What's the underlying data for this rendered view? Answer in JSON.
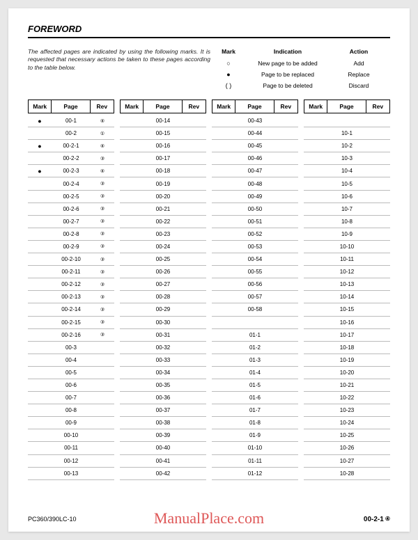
{
  "header": {
    "title": "FOREWORD"
  },
  "intro": "The affected pages are indicated by using the following marks. It is requested that necessary actions be taken to these pages according to the table below.",
  "legend": {
    "head": {
      "mark": "Mark",
      "indication": "Indication",
      "action": "Action"
    },
    "rows": [
      {
        "mark": "○",
        "indication": "New page to be added",
        "action": "Add"
      },
      {
        "mark": "●",
        "indication": "Page to be replaced",
        "action": "Replace"
      },
      {
        "mark": "(  )",
        "indication": "Page to be deleted",
        "action": "Discard"
      }
    ]
  },
  "tableHead": {
    "mark": "Mark",
    "page": "Page",
    "rev": "Rev"
  },
  "columns": [
    [
      {
        "mark": "●",
        "page": "00-1",
        "rev": "④"
      },
      {
        "mark": "",
        "page": "00-2",
        "rev": "①"
      },
      {
        "mark": "●",
        "page": "00-2-1",
        "rev": "④"
      },
      {
        "mark": "",
        "page": "00-2-2",
        "rev": "③"
      },
      {
        "mark": "●",
        "page": "00-2-3",
        "rev": "④"
      },
      {
        "mark": "",
        "page": "00-2-4",
        "rev": "③"
      },
      {
        "mark": "",
        "page": "00-2-5",
        "rev": "③"
      },
      {
        "mark": "",
        "page": "00-2-6",
        "rev": "③"
      },
      {
        "mark": "",
        "page": "00-2-7",
        "rev": "③"
      },
      {
        "mark": "",
        "page": "00-2-8",
        "rev": "③"
      },
      {
        "mark": "",
        "page": "00-2-9",
        "rev": "③"
      },
      {
        "mark": "",
        "page": "00-2-10",
        "rev": "③"
      },
      {
        "mark": "",
        "page": "00-2-11",
        "rev": "③"
      },
      {
        "mark": "",
        "page": "00-2-12",
        "rev": "③"
      },
      {
        "mark": "",
        "page": "00-2-13",
        "rev": "③"
      },
      {
        "mark": "",
        "page": "00-2-14",
        "rev": "③"
      },
      {
        "mark": "",
        "page": "00-2-15",
        "rev": "③"
      },
      {
        "mark": "",
        "page": "00-2-16",
        "rev": "③"
      },
      {
        "mark": "",
        "page": "00-3",
        "rev": ""
      },
      {
        "mark": "",
        "page": "00-4",
        "rev": ""
      },
      {
        "mark": "",
        "page": "00-5",
        "rev": ""
      },
      {
        "mark": "",
        "page": "00-6",
        "rev": ""
      },
      {
        "mark": "",
        "page": "00-7",
        "rev": ""
      },
      {
        "mark": "",
        "page": "00-8",
        "rev": ""
      },
      {
        "mark": "",
        "page": "00-9",
        "rev": ""
      },
      {
        "mark": "",
        "page": "00-10",
        "rev": ""
      },
      {
        "mark": "",
        "page": "00-11",
        "rev": ""
      },
      {
        "mark": "",
        "page": "00-12",
        "rev": ""
      },
      {
        "mark": "",
        "page": "00-13",
        "rev": ""
      }
    ],
    [
      {
        "mark": "",
        "page": "00-14",
        "rev": ""
      },
      {
        "mark": "",
        "page": "00-15",
        "rev": ""
      },
      {
        "mark": "",
        "page": "00-16",
        "rev": ""
      },
      {
        "mark": "",
        "page": "00-17",
        "rev": ""
      },
      {
        "mark": "",
        "page": "00-18",
        "rev": ""
      },
      {
        "mark": "",
        "page": "00-19",
        "rev": ""
      },
      {
        "mark": "",
        "page": "00-20",
        "rev": ""
      },
      {
        "mark": "",
        "page": "00-21",
        "rev": ""
      },
      {
        "mark": "",
        "page": "00-22",
        "rev": ""
      },
      {
        "mark": "",
        "page": "00-23",
        "rev": ""
      },
      {
        "mark": "",
        "page": "00-24",
        "rev": ""
      },
      {
        "mark": "",
        "page": "00-25",
        "rev": ""
      },
      {
        "mark": "",
        "page": "00-26",
        "rev": ""
      },
      {
        "mark": "",
        "page": "00-27",
        "rev": ""
      },
      {
        "mark": "",
        "page": "00-28",
        "rev": ""
      },
      {
        "mark": "",
        "page": "00-29",
        "rev": ""
      },
      {
        "mark": "",
        "page": "00-30",
        "rev": ""
      },
      {
        "mark": "",
        "page": "00-31",
        "rev": ""
      },
      {
        "mark": "",
        "page": "00-32",
        "rev": ""
      },
      {
        "mark": "",
        "page": "00-33",
        "rev": ""
      },
      {
        "mark": "",
        "page": "00-34",
        "rev": ""
      },
      {
        "mark": "",
        "page": "00-35",
        "rev": ""
      },
      {
        "mark": "",
        "page": "00-36",
        "rev": ""
      },
      {
        "mark": "",
        "page": "00-37",
        "rev": ""
      },
      {
        "mark": "",
        "page": "00-38",
        "rev": ""
      },
      {
        "mark": "",
        "page": "00-39",
        "rev": ""
      },
      {
        "mark": "",
        "page": "00-40",
        "rev": ""
      },
      {
        "mark": "",
        "page": "00-41",
        "rev": ""
      },
      {
        "mark": "",
        "page": "00-42",
        "rev": ""
      }
    ],
    [
      {
        "mark": "",
        "page": "00-43",
        "rev": ""
      },
      {
        "mark": "",
        "page": "00-44",
        "rev": ""
      },
      {
        "mark": "",
        "page": "00-45",
        "rev": ""
      },
      {
        "mark": "",
        "page": "00-46",
        "rev": ""
      },
      {
        "mark": "",
        "page": "00-47",
        "rev": ""
      },
      {
        "mark": "",
        "page": "00-48",
        "rev": ""
      },
      {
        "mark": "",
        "page": "00-49",
        "rev": ""
      },
      {
        "mark": "",
        "page": "00-50",
        "rev": ""
      },
      {
        "mark": "",
        "page": "00-51",
        "rev": ""
      },
      {
        "mark": "",
        "page": "00-52",
        "rev": ""
      },
      {
        "mark": "",
        "page": "00-53",
        "rev": ""
      },
      {
        "mark": "",
        "page": "00-54",
        "rev": ""
      },
      {
        "mark": "",
        "page": "00-55",
        "rev": ""
      },
      {
        "mark": "",
        "page": "00-56",
        "rev": ""
      },
      {
        "mark": "",
        "page": "00-57",
        "rev": ""
      },
      {
        "mark": "",
        "page": "00-58",
        "rev": ""
      },
      {
        "mark": "",
        "page": "",
        "rev": ""
      },
      {
        "mark": "",
        "page": "01-1",
        "rev": ""
      },
      {
        "mark": "",
        "page": "01-2",
        "rev": ""
      },
      {
        "mark": "",
        "page": "01-3",
        "rev": ""
      },
      {
        "mark": "",
        "page": "01-4",
        "rev": ""
      },
      {
        "mark": "",
        "page": "01-5",
        "rev": ""
      },
      {
        "mark": "",
        "page": "01-6",
        "rev": ""
      },
      {
        "mark": "",
        "page": "01-7",
        "rev": ""
      },
      {
        "mark": "",
        "page": "01-8",
        "rev": ""
      },
      {
        "mark": "",
        "page": "01-9",
        "rev": ""
      },
      {
        "mark": "",
        "page": "01-10",
        "rev": ""
      },
      {
        "mark": "",
        "page": "01-11",
        "rev": ""
      },
      {
        "mark": "",
        "page": "01-12",
        "rev": ""
      }
    ],
    [
      {
        "mark": "",
        "page": "",
        "rev": ""
      },
      {
        "mark": "",
        "page": "10-1",
        "rev": ""
      },
      {
        "mark": "",
        "page": "10-2",
        "rev": ""
      },
      {
        "mark": "",
        "page": "10-3",
        "rev": ""
      },
      {
        "mark": "",
        "page": "10-4",
        "rev": ""
      },
      {
        "mark": "",
        "page": "10-5",
        "rev": ""
      },
      {
        "mark": "",
        "page": "10-6",
        "rev": ""
      },
      {
        "mark": "",
        "page": "10-7",
        "rev": ""
      },
      {
        "mark": "",
        "page": "10-8",
        "rev": ""
      },
      {
        "mark": "",
        "page": "10-9",
        "rev": ""
      },
      {
        "mark": "",
        "page": "10-10",
        "rev": ""
      },
      {
        "mark": "",
        "page": "10-11",
        "rev": ""
      },
      {
        "mark": "",
        "page": "10-12",
        "rev": ""
      },
      {
        "mark": "",
        "page": "10-13",
        "rev": ""
      },
      {
        "mark": "",
        "page": "10-14",
        "rev": ""
      },
      {
        "mark": "",
        "page": "10-15",
        "rev": ""
      },
      {
        "mark": "",
        "page": "10-16",
        "rev": ""
      },
      {
        "mark": "",
        "page": "10-17",
        "rev": ""
      },
      {
        "mark": "",
        "page": "10-18",
        "rev": ""
      },
      {
        "mark": "",
        "page": "10-19",
        "rev": ""
      },
      {
        "mark": "",
        "page": "10-20",
        "rev": ""
      },
      {
        "mark": "",
        "page": "10-21",
        "rev": ""
      },
      {
        "mark": "",
        "page": "10-22",
        "rev": ""
      },
      {
        "mark": "",
        "page": "10-23",
        "rev": ""
      },
      {
        "mark": "",
        "page": "10-24",
        "rev": ""
      },
      {
        "mark": "",
        "page": "10-25",
        "rev": ""
      },
      {
        "mark": "",
        "page": "10-26",
        "rev": ""
      },
      {
        "mark": "",
        "page": "10-27",
        "rev": ""
      },
      {
        "mark": "",
        "page": "10-28",
        "rev": ""
      }
    ]
  ],
  "footer": {
    "left": "PC360/390LC-10",
    "watermark": "ManualPlace.com",
    "pageNum": "00-2-1",
    "pageRev": "④"
  }
}
